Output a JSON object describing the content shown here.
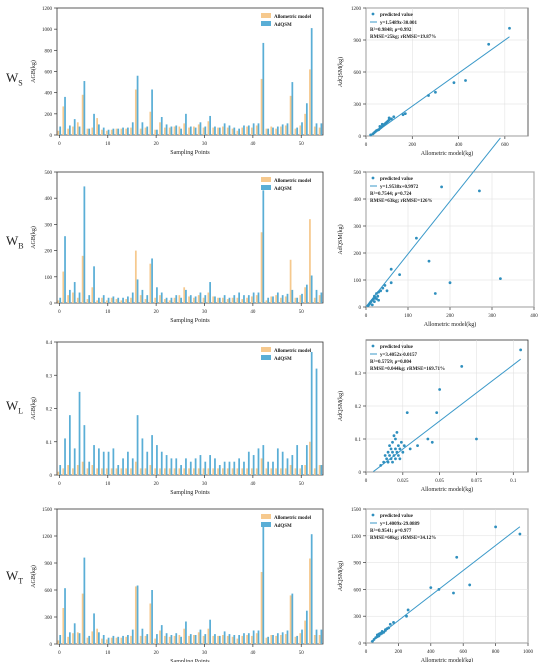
{
  "figure": {
    "row_labels": [
      {
        "main": "W",
        "sub": "S"
      },
      {
        "main": "W",
        "sub": "B"
      },
      {
        "main": "W",
        "sub": "L"
      },
      {
        "main": "W",
        "sub": "T"
      }
    ],
    "colors": {
      "allometric": "#f6c98e",
      "adqsm": "#5aaed6",
      "line": "#3b99c9",
      "point": "#2f8fbe",
      "axis": "#333333",
      "grid": "#dddddd"
    }
  },
  "chart_data": [
    {
      "id": "ws-bar",
      "type": "bar",
      "xlabel": "Sampling Points",
      "ylabel": "AGB(kg)",
      "ylim": [
        0,
        1200
      ],
      "yticks": [
        0,
        200,
        400,
        600,
        800,
        1000,
        1200
      ],
      "xticks": [
        0,
        10,
        20,
        30,
        40,
        50
      ],
      "legend_position": "top-right",
      "series": [
        {
          "name": "Allometric model",
          "values": [
            40,
            270,
            60,
            80,
            120,
            380,
            60,
            70,
            160,
            50,
            40,
            50,
            60,
            60,
            60,
            70,
            430,
            60,
            70,
            220,
            50,
            120,
            70,
            70,
            80,
            80,
            110,
            70,
            80,
            100,
            70,
            130,
            70,
            70,
            80,
            70,
            60,
            40,
            70,
            80,
            70,
            90,
            530,
            60,
            80,
            60,
            80,
            90,
            370,
            60,
            90,
            200,
            620,
            80,
            70
          ]
        },
        {
          "name": "AdQSM",
          "values": [
            80,
            360,
            90,
            150,
            80,
            510,
            60,
            200,
            100,
            70,
            50,
            60,
            60,
            70,
            70,
            120,
            560,
            120,
            80,
            430,
            50,
            170,
            100,
            80,
            90,
            60,
            200,
            80,
            70,
            120,
            80,
            180,
            80,
            70,
            110,
            90,
            70,
            60,
            90,
            90,
            110,
            110,
            870,
            60,
            70,
            80,
            100,
            110,
            500,
            70,
            120,
            300,
            1010,
            110,
            110
          ]
        }
      ]
    },
    {
      "id": "ws-scatter",
      "type": "scatter",
      "xlabel": "Allometric model(kg)",
      "ylabel": "AdQSM(kg)",
      "xlim": [
        0,
        700
      ],
      "ylim": [
        0,
        1200
      ],
      "xticks": [
        0,
        200,
        400,
        600
      ],
      "yticks": [
        0,
        300,
        600,
        900,
        1200
      ],
      "legend": "predicted value",
      "equation": "y=1.5489x-30.001",
      "stats1": "R²=0.9848; ρ=0.992",
      "stats2": "RMSE=25kg; rRMSE=19.87%",
      "fit": {
        "slope": 1.5489,
        "intercept": -30.001,
        "x_range": [
          20,
          620
        ]
      },
      "points": [
        [
          20,
          10
        ],
        [
          30,
          20
        ],
        [
          35,
          30
        ],
        [
          40,
          40
        ],
        [
          45,
          50
        ],
        [
          50,
          55
        ],
        [
          55,
          60
        ],
        [
          60,
          70
        ],
        [
          60,
          90
        ],
        [
          65,
          80
        ],
        [
          70,
          90
        ],
        [
          70,
          110
        ],
        [
          75,
          100
        ],
        [
          80,
          110
        ],
        [
          85,
          120
        ],
        [
          90,
          130
        ],
        [
          95,
          140
        ],
        [
          100,
          150
        ],
        [
          100,
          170
        ],
        [
          110,
          160
        ],
        [
          120,
          180
        ],
        [
          160,
          200
        ],
        [
          170,
          210
        ],
        [
          270,
          380
        ],
        [
          300,
          410
        ],
        [
          380,
          500
        ],
        [
          430,
          520
        ],
        [
          530,
          860
        ],
        [
          620,
          1010
        ]
      ]
    },
    {
      "id": "wb-bar",
      "type": "bar",
      "xlabel": "Sampling Points",
      "ylabel": "AGB(kg)",
      "ylim": [
        0,
        500
      ],
      "yticks": [
        0,
        100,
        200,
        300,
        400,
        500
      ],
      "xticks": [
        0,
        10,
        20,
        30,
        40,
        50
      ],
      "legend_position": "top-right",
      "series": [
        {
          "name": "Allometric model",
          "values": [
            10,
            120,
            30,
            40,
            20,
            180,
            15,
            60,
            10,
            20,
            10,
            20,
            15,
            10,
            15,
            20,
            200,
            30,
            15,
            150,
            20,
            30,
            15,
            10,
            20,
            30,
            60,
            25,
            20,
            30,
            20,
            40,
            25,
            20,
            20,
            15,
            20,
            20,
            15,
            20,
            25,
            30,
            270,
            10,
            25,
            30,
            20,
            25,
            165,
            20,
            30,
            60,
            320,
            20,
            30
          ]
        },
        {
          "name": "AdQSM",
          "values": [
            20,
            255,
            50,
            80,
            40,
            445,
            30,
            140,
            20,
            30,
            20,
            25,
            20,
            20,
            25,
            40,
            90,
            50,
            30,
            170,
            60,
            40,
            20,
            20,
            30,
            20,
            50,
            30,
            25,
            40,
            30,
            80,
            25,
            20,
            30,
            20,
            30,
            40,
            30,
            30,
            40,
            40,
            430,
            20,
            25,
            40,
            30,
            35,
            50,
            20,
            35,
            70,
            105,
            50,
            40
          ]
        }
      ]
    },
    {
      "id": "wb-scatter",
      "type": "scatter",
      "xlabel": "Allometric model(kg)",
      "ylabel": "AdQSM(kg)",
      "xlim": [
        0,
        400
      ],
      "ylim": [
        0,
        500
      ],
      "xticks": [
        0,
        100,
        200,
        300,
        400
      ],
      "yticks": [
        0,
        100,
        200,
        300,
        400,
        500
      ],
      "legend": "predicted value",
      "equation": "y=1.9538x+0.9972",
      "stats1": "R²=0.7544; ρ=0.724",
      "stats2": "RMSE=63kg; rRMSE=126%",
      "fit": {
        "slope": 1.9538,
        "intercept": 0.9972,
        "x_range": [
          0,
          320
        ]
      },
      "points": [
        [
          5,
          5
        ],
        [
          8,
          10
        ],
        [
          10,
          15
        ],
        [
          12,
          20
        ],
        [
          15,
          25
        ],
        [
          15,
          8
        ],
        [
          18,
          30
        ],
        [
          20,
          20
        ],
        [
          20,
          40
        ],
        [
          22,
          35
        ],
        [
          25,
          30
        ],
        [
          25,
          50
        ],
        [
          28,
          40
        ],
        [
          30,
          55
        ],
        [
          30,
          25
        ],
        [
          35,
          60
        ],
        [
          40,
          70
        ],
        [
          45,
          80
        ],
        [
          50,
          60
        ],
        [
          60,
          90
        ],
        [
          60,
          140
        ],
        [
          80,
          120
        ],
        [
          120,
          255
        ],
        [
          150,
          170
        ],
        [
          165,
          50
        ],
        [
          180,
          445
        ],
        [
          200,
          90
        ],
        [
          270,
          430
        ],
        [
          320,
          105
        ]
      ]
    },
    {
      "id": "wl-bar",
      "type": "bar",
      "xlabel": "Sampling Points",
      "ylabel": "AGB(kg)",
      "ylim": [
        0,
        0.4
      ],
      "yticks": [
        0.0,
        0.1,
        0.2,
        0.3,
        0.4
      ],
      "xticks": [
        0,
        10,
        20,
        30,
        40,
        50
      ],
      "legend_position": "top-right",
      "series": [
        {
          "name": "Allometric model",
          "values": [
            0.01,
            0.02,
            0.03,
            0.02,
            0.03,
            0.04,
            0.02,
            0.03,
            0.02,
            0.02,
            0.02,
            0.02,
            0.02,
            0.02,
            0.02,
            0.02,
            0.04,
            0.02,
            0.02,
            0.03,
            0.02,
            0.02,
            0.02,
            0.02,
            0.02,
            0.02,
            0.02,
            0.02,
            0.02,
            0.02,
            0.02,
            0.02,
            0.02,
            0.02,
            0.02,
            0.02,
            0.02,
            0.02,
            0.02,
            0.02,
            0.02,
            0.02,
            0.05,
            0.02,
            0.02,
            0.02,
            0.02,
            0.02,
            0.03,
            0.02,
            0.02,
            0.03,
            0.1,
            0.02,
            0.03
          ]
        },
        {
          "name": "AdQSM",
          "values": [
            0.03,
            0.11,
            0.18,
            0.08,
            0.25,
            0.15,
            0.04,
            0.09,
            0.08,
            0.07,
            0.07,
            0.08,
            0.03,
            0.05,
            0.07,
            0.05,
            0.18,
            0.11,
            0.07,
            0.12,
            0.09,
            0.07,
            0.06,
            0.05,
            0.05,
            0.03,
            0.05,
            0.04,
            0.05,
            0.06,
            0.04,
            0.06,
            0.05,
            0.03,
            0.04,
            0.04,
            0.04,
            0.05,
            0.04,
            0.07,
            0.06,
            0.08,
            0.09,
            0.04,
            0.04,
            0.08,
            0.07,
            0.05,
            0.06,
            0.09,
            0.03,
            0.09,
            0.37,
            0.32,
            0.03
          ]
        }
      ]
    },
    {
      "id": "wl-scatter",
      "type": "scatter",
      "xlabel": "Allometric model(kg)",
      "ylabel": "AdQSM(kg)",
      "xlim": [
        0.0,
        0.11
      ],
      "ylim": [
        0.0,
        0.4
      ],
      "xticks": [
        0.0,
        0.025,
        0.05,
        0.075,
        0.1
      ],
      "yticks": [
        0.0,
        0.1,
        0.2,
        0.3
      ],
      "legend": "predicted value",
      "equation": "y=3.4052x-0.0157",
      "stats1": "R²=0.5759; ρ=0.804",
      "stats2": "RMSE=0.044kg; rRMSE=169.71%",
      "fit": {
        "slope": 3.4052,
        "intercept": -0.0157,
        "x_range": [
          0.005,
          0.105
        ]
      },
      "points": [
        [
          0.01,
          0.02
        ],
        [
          0.012,
          0.03
        ],
        [
          0.013,
          0.05
        ],
        [
          0.014,
          0.04
        ],
        [
          0.015,
          0.03
        ],
        [
          0.015,
          0.06
        ],
        [
          0.016,
          0.05
        ],
        [
          0.016,
          0.08
        ],
        [
          0.017,
          0.04
        ],
        [
          0.017,
          0.07
        ],
        [
          0.018,
          0.03
        ],
        [
          0.018,
          0.06
        ],
        [
          0.018,
          0.09
        ],
        [
          0.019,
          0.05
        ],
        [
          0.019,
          0.11
        ],
        [
          0.02,
          0.04
        ],
        [
          0.02,
          0.07
        ],
        [
          0.02,
          0.1
        ],
        [
          0.021,
          0.06
        ],
        [
          0.021,
          0.12
        ],
        [
          0.022,
          0.05
        ],
        [
          0.022,
          0.08
        ],
        [
          0.023,
          0.07
        ],
        [
          0.023,
          0.04
        ],
        [
          0.024,
          0.09
        ],
        [
          0.025,
          0.06
        ],
        [
          0.026,
          0.08
        ],
        [
          0.028,
          0.18
        ],
        [
          0.03,
          0.07
        ],
        [
          0.035,
          0.08
        ],
        [
          0.042,
          0.1
        ],
        [
          0.045,
          0.09
        ],
        [
          0.048,
          0.18
        ],
        [
          0.05,
          0.25
        ],
        [
          0.065,
          0.32
        ],
        [
          0.075,
          0.1
        ],
        [
          0.105,
          0.37
        ]
      ]
    },
    {
      "id": "wt-bar",
      "type": "bar",
      "xlabel": "Sampling Points",
      "ylabel": "AGB(kg)",
      "ylim": [
        0,
        1500
      ],
      "yticks": [
        0,
        300,
        600,
        900,
        1200,
        1500
      ],
      "xticks": [
        0,
        10,
        20,
        30,
        40,
        50
      ],
      "legend_position": "top-right",
      "series": [
        {
          "name": "Allometric model",
          "values": [
            40,
            400,
            80,
            120,
            130,
            560,
            70,
            140,
            170,
            60,
            50,
            70,
            70,
            70,
            80,
            90,
            640,
            90,
            90,
            450,
            60,
            150,
            90,
            80,
            90,
            100,
            170,
            90,
            100,
            130,
            90,
            170,
            90,
            90,
            100,
            90,
            80,
            60,
            90,
            100,
            90,
            120,
            800,
            70,
            100,
            90,
            100,
            110,
            540,
            80,
            120,
            260,
            950,
            100,
            100
          ]
        },
        {
          "name": "AdQSM",
          "values": [
            100,
            620,
            130,
            230,
            120,
            960,
            90,
            340,
            130,
            100,
            70,
            90,
            80,
            90,
            100,
            160,
            650,
            170,
            110,
            600,
            110,
            210,
            120,
            100,
            120,
            80,
            250,
            110,
            100,
            160,
            110,
            270,
            110,
            90,
            140,
            110,
            100,
            100,
            120,
            120,
            150,
            150,
            1300,
            80,
            100,
            120,
            130,
            150,
            560,
            90,
            160,
            370,
            1220,
            160,
            160
          ]
        }
      ]
    },
    {
      "id": "wt-scatter",
      "type": "scatter",
      "xlabel": "Allometric model(kg)",
      "ylabel": "AdQSM(kg)",
      "xlim": [
        0,
        1000
      ],
      "ylim": [
        0,
        1500
      ],
      "xticks": [
        0,
        200,
        400,
        600,
        800,
        1000
      ],
      "yticks": [
        0,
        300,
        600,
        900,
        1200,
        1500
      ],
      "legend": "predicted value",
      "equation": "y=1.4009x-29.0889",
      "stats1": "R²=0.9541; ρ=0.977",
      "stats2": "RMSE=60kg; rRMSE=34.12%",
      "fit": {
        "slope": 1.4009,
        "intercept": -29.0889,
        "x_range": [
          30,
          950
        ]
      },
      "points": [
        [
          40,
          20
        ],
        [
          50,
          40
        ],
        [
          60,
          60
        ],
        [
          70,
          70
        ],
        [
          70,
          90
        ],
        [
          80,
          80
        ],
        [
          80,
          100
        ],
        [
          90,
          100
        ],
        [
          90,
          110
        ],
        [
          100,
          110
        ],
        [
          100,
          130
        ],
        [
          110,
          120
        ],
        [
          120,
          140
        ],
        [
          120,
          150
        ],
        [
          130,
          160
        ],
        [
          140,
          170
        ],
        [
          150,
          210
        ],
        [
          170,
          230
        ],
        [
          250,
          300
        ],
        [
          260,
          370
        ],
        [
          400,
          620
        ],
        [
          450,
          600
        ],
        [
          540,
          560
        ],
        [
          560,
          960
        ],
        [
          640,
          650
        ],
        [
          800,
          1300
        ],
        [
          950,
          1220
        ]
      ]
    }
  ]
}
